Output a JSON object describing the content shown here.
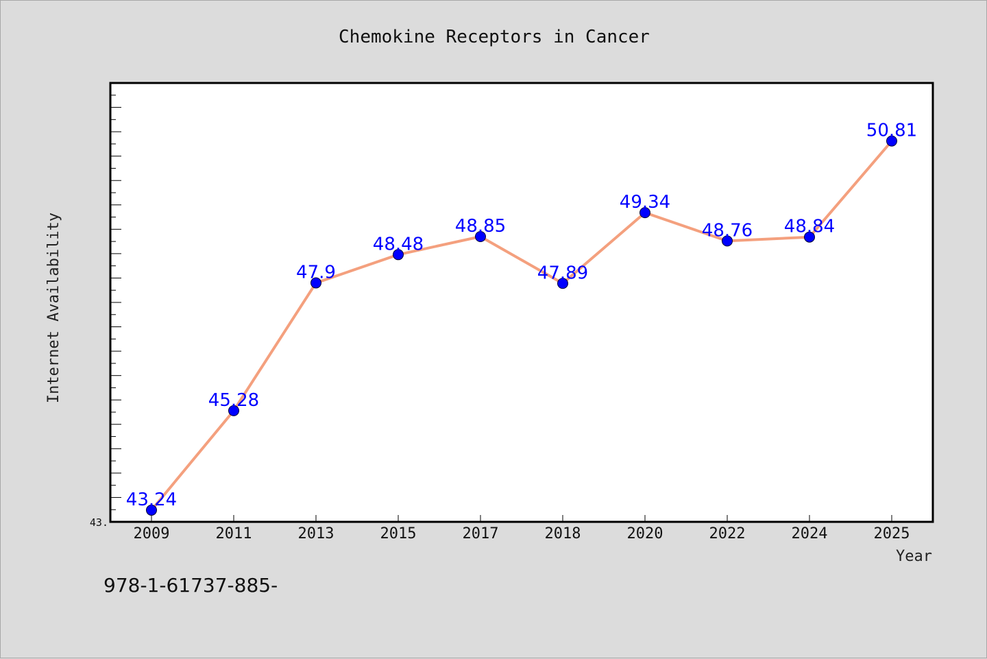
{
  "chart_data": {
    "type": "line",
    "title": "Chemokine Receptors in Cancer",
    "xlabel": "Year",
    "ylabel": "Internet Availability",
    "categories": [
      "2009",
      "2011",
      "2013",
      "2015",
      "2017",
      "2018",
      "2020",
      "2022",
      "2024",
      "2025"
    ],
    "values": [
      43.24,
      45.28,
      47.9,
      48.48,
      48.85,
      47.89,
      49.34,
      48.76,
      48.84,
      50.81
    ],
    "data_labels": [
      "43.24",
      "45.28",
      "47.9",
      "48.48",
      "48.85",
      "47.89",
      "49.34",
      "48.76",
      "48.84",
      "50.81"
    ],
    "ylim": [
      43.0,
      52.0
    ],
    "y_tick_labels": [
      "43."
    ],
    "grid": false,
    "colors": {
      "line": "#f4a07e",
      "marker": "#0000ff",
      "labels": "#0000ff"
    }
  },
  "footer_text": "978-1-61737-885-"
}
